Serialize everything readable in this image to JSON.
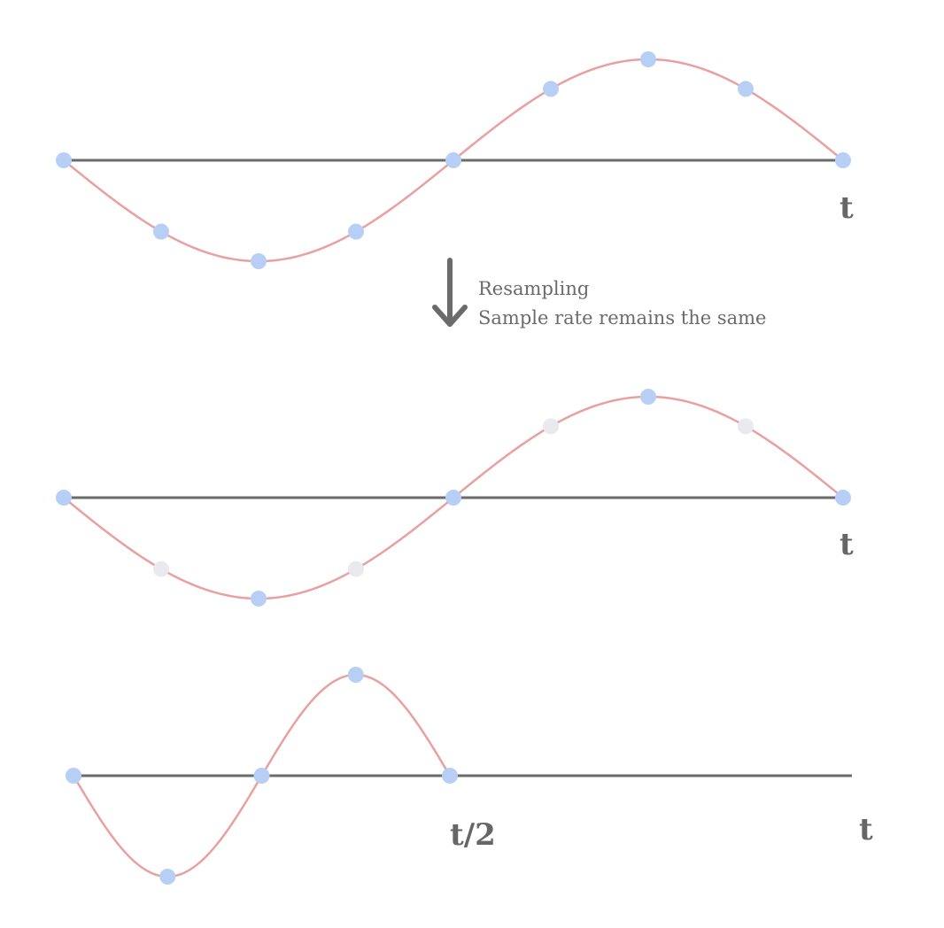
{
  "panels": [
    {
      "id": "original",
      "axis_label": "t",
      "samples": [
        {
          "phase": 0.0,
          "kept": true
        },
        {
          "phase": 0.125,
          "kept": true
        },
        {
          "phase": 0.25,
          "kept": true
        },
        {
          "phase": 0.375,
          "kept": true
        },
        {
          "phase": 0.5,
          "kept": true
        },
        {
          "phase": 0.625,
          "kept": true
        },
        {
          "phase": 0.75,
          "kept": true
        },
        {
          "phase": 0.875,
          "kept": true
        },
        {
          "phase": 1.0,
          "kept": true
        }
      ]
    },
    {
      "id": "resampled",
      "axis_label": "t",
      "samples": [
        {
          "phase": 0.0,
          "kept": true
        },
        {
          "phase": 0.125,
          "kept": false
        },
        {
          "phase": 0.25,
          "kept": true
        },
        {
          "phase": 0.375,
          "kept": false
        },
        {
          "phase": 0.5,
          "kept": true
        },
        {
          "phase": 0.625,
          "kept": false
        },
        {
          "phase": 0.75,
          "kept": true
        },
        {
          "phase": 0.875,
          "kept": false
        },
        {
          "phase": 1.0,
          "kept": true
        }
      ]
    },
    {
      "id": "played-back",
      "axis_label": "t",
      "half_label": "t/2",
      "samples": [
        {
          "phase": 0.0,
          "kept": true
        },
        {
          "phase": 0.25,
          "kept": true
        },
        {
          "phase": 0.5,
          "kept": true
        },
        {
          "phase": 0.75,
          "kept": true
        },
        {
          "phase": 1.0,
          "kept": true
        }
      ]
    }
  ],
  "transition": {
    "line1": "Resampling",
    "line2": "Sample rate remains the same"
  },
  "colors": {
    "axis": "#6b6b6b",
    "wave": "#e8a0a0",
    "sample_kept": "#b8cff5",
    "sample_dropped": "#e9e9ee",
    "text": "#666666"
  }
}
